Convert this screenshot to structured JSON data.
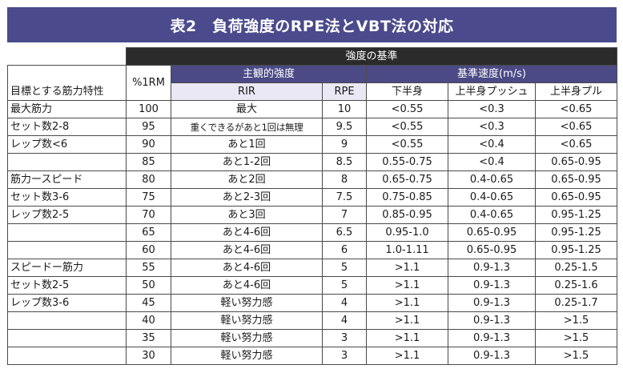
{
  "title": "表2　負荷強度のRPE法とVBT法の対応",
  "header": {
    "goal_col": "目標とする筋力特性",
    "rm_col": "%1RM",
    "group_top": "強度の基準",
    "group_subjective": "主観的強度",
    "group_velocity": "基準速度(m/s)",
    "rir": "RIR",
    "rpe": "RPE",
    "lower": "下半身",
    "upper_push": "上半身プッシュ",
    "upper_pull": "上半身プル"
  },
  "rows": [
    {
      "goal": "最大筋力",
      "rm": "100",
      "rir": "最大",
      "rpe": "10",
      "lower": "<0.55",
      "push": "<0.3",
      "pull": "<0.65"
    },
    {
      "goal": "セット数2-8",
      "rm": "95",
      "rir": "重くできるがあと1回は無理",
      "rpe": "9.5",
      "lower": "<0.55",
      "push": "<0.3",
      "pull": "<0.65"
    },
    {
      "goal": "レップ数<6",
      "rm": "90",
      "rir": "あと1回",
      "rpe": "9",
      "lower": "<0.55",
      "push": "<0.4",
      "pull": "<0.65"
    },
    {
      "goal": "",
      "rm": "85",
      "rir": "あと1-2回",
      "rpe": "8.5",
      "lower": "0.55-0.75",
      "push": "<0.4",
      "pull": "0.65-0.95"
    },
    {
      "goal": "筋力ースピード",
      "rm": "80",
      "rir": "あと2回",
      "rpe": "8",
      "lower": "0.65-0.75",
      "push": "0.4-0.65",
      "pull": "0.65-0.95"
    },
    {
      "goal": "セット数3-6",
      "rm": "75",
      "rir": "あと2-3回",
      "rpe": "7.5",
      "lower": "0.75-0.85",
      "push": "0.4-0.65",
      "pull": "0.65-0.95"
    },
    {
      "goal": "レップ数2-5",
      "rm": "70",
      "rir": "あと3回",
      "rpe": "7",
      "lower": "0.85-0.95",
      "push": "0.4-0.65",
      "pull": "0.95-1.25"
    },
    {
      "goal": "",
      "rm": "65",
      "rir": "あと4-6回",
      "rpe": "6.5",
      "lower": "0.95-1.0",
      "push": "0.65-0.95",
      "pull": "0.95-1.25"
    },
    {
      "goal": "",
      "rm": "60",
      "rir": "あと4-6回",
      "rpe": "6",
      "lower": "1.0-1.11",
      "push": "0.65-0.95",
      "pull": "0.95-1.25"
    },
    {
      "goal": "スピードー筋力",
      "rm": "55",
      "rir": "あと4-6回",
      "rpe": "5",
      "lower": ">1.1",
      "push": "0.9-1.3",
      "pull": "0.25-1.5"
    },
    {
      "goal": "セット数2-5",
      "rm": "50",
      "rir": "あと4-6回",
      "rpe": "5",
      "lower": ">1.1",
      "push": "0.9-1.3",
      "pull": "0.25-1.6"
    },
    {
      "goal": "レップ数3-6",
      "rm": "45",
      "rir": "軽い努力感",
      "rpe": "4",
      "lower": ">1.1",
      "push": "0.9-1.3",
      "pull": "0.25-1.7"
    },
    {
      "goal": "",
      "rm": "40",
      "rir": "軽い努力感",
      "rpe": "4",
      "lower": ">1.1",
      "push": "0.9-1.3",
      "pull": ">1.5"
    },
    {
      "goal": "",
      "rm": "35",
      "rir": "軽い努力感",
      "rpe": "3",
      "lower": ">1.1",
      "push": "0.9-1.3",
      "pull": ">1.5"
    },
    {
      "goal": "",
      "rm": "30",
      "rir": "軽い努力感",
      "rpe": "3",
      "lower": ">1.1",
      "push": "0.9-1.3",
      "pull": ">1.5"
    }
  ],
  "colors": {
    "title_bg": "#4a4a8c",
    "header_dark": "#2b2b2b",
    "header_mid": "#4b4a86",
    "header_light": "#e9e8f4"
  }
}
